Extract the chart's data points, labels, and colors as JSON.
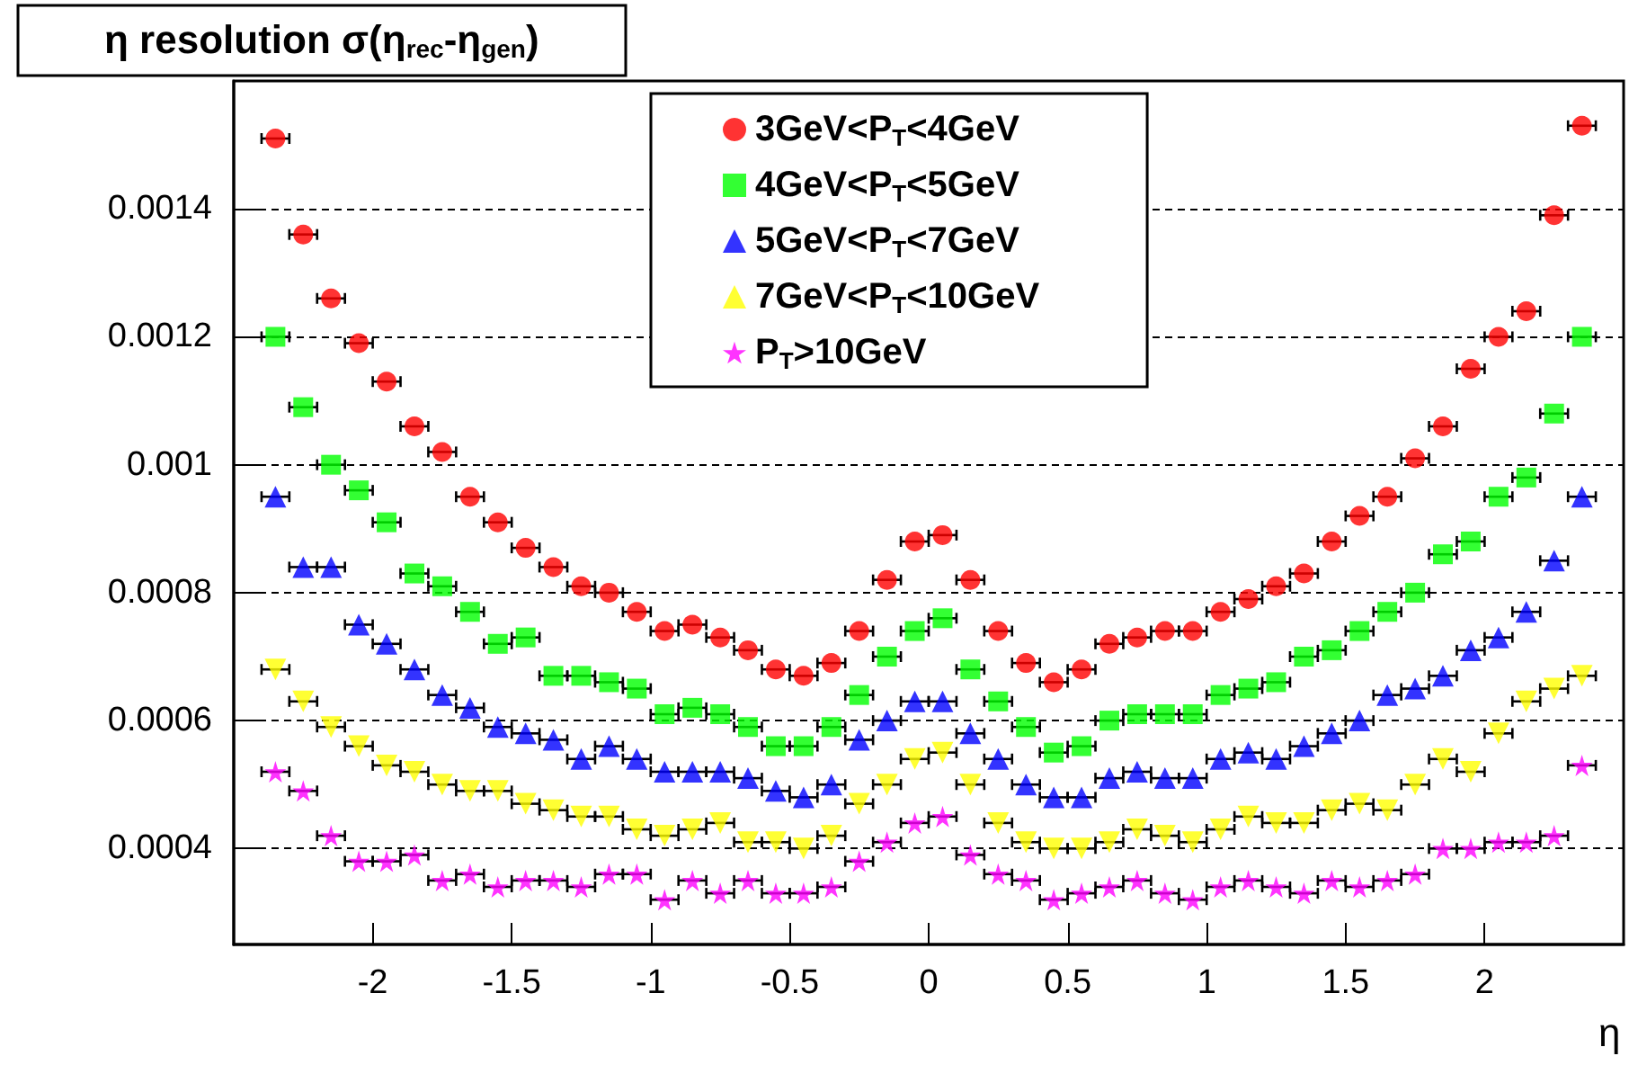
{
  "chart_data": {
    "type": "scatter",
    "title": "η resolution σ(η$_{rec}$-η$_{gen}$)",
    "xlabel": "η",
    "x": [
      -2.35,
      -2.25,
      -2.15,
      -2.05,
      -1.95,
      -1.85,
      -1.75,
      -1.65,
      -1.55,
      -1.45,
      -1.35,
      -1.25,
      -1.15,
      -1.05,
      -0.95,
      -0.85,
      -0.75,
      -0.65,
      -0.55,
      -0.45,
      -0.35,
      -0.25,
      -0.15,
      -0.05,
      0.05,
      0.15,
      0.25,
      0.35,
      0.45,
      0.55,
      0.65,
      0.75,
      0.85,
      0.95,
      1.05,
      1.15,
      1.25,
      1.35,
      1.45,
      1.55,
      1.65,
      1.75,
      1.85,
      1.95,
      2.05,
      2.15,
      2.25,
      2.35
    ],
    "xlim": [
      -2.5,
      2.5
    ],
    "xticks": [
      -2,
      -1.5,
      -1,
      -0.5,
      0,
      0.5,
      1,
      1.5,
      2
    ],
    "ylim": [
      0.00025,
      0.0016
    ],
    "yticks": [
      0.0004,
      0.0006,
      0.0008,
      0.001,
      0.0012,
      0.0014
    ],
    "grid": "y",
    "legend": "top",
    "series": [
      {
        "name": "3GeV<P$_{T}$<4GeV",
        "color": "#ff0000",
        "marker": "circle",
        "values": [
          0.00151,
          0.00136,
          0.00126,
          0.00119,
          0.00113,
          0.00106,
          0.00102,
          0.00095,
          0.00091,
          0.00087,
          0.00084,
          0.00081,
          0.0008,
          0.00077,
          0.00074,
          0.00075,
          0.00073,
          0.00071,
          0.00068,
          0.00067,
          0.00069,
          0.00074,
          0.00082,
          0.00088,
          0.00089,
          0.00082,
          0.00074,
          0.00069,
          0.00066,
          0.00068,
          0.00072,
          0.00073,
          0.00074,
          0.00074,
          0.00077,
          0.00079,
          0.00081,
          0.00083,
          0.00088,
          0.00092,
          0.00095,
          0.00101,
          0.00106,
          0.00115,
          0.0012,
          0.00124,
          0.00139,
          0.00153
        ],
        "xerrors": [
          0.05,
          0.05,
          0.05,
          0.05,
          0.05,
          0.05,
          0.05,
          0.05,
          0.05,
          0.05,
          0.05,
          0.05,
          0.05,
          0.05,
          0.05,
          0.05,
          0.05,
          0.05,
          0.05,
          0.05,
          0.05,
          0.05,
          0.05,
          0.05,
          0.05,
          0.05,
          0.05,
          0.05,
          0.05,
          0.05,
          0.05,
          0.05,
          0.05,
          0.05,
          0.05,
          0.05,
          0.05,
          0.05,
          0.05,
          0.05,
          0.05,
          0.05,
          0.05,
          0.05,
          0.05,
          0.05,
          0.05,
          0.05
        ]
      },
      {
        "name": "4GeV<P$_{T}$<5GeV",
        "color": "#00ff00",
        "marker": "square",
        "values": [
          0.0012,
          0.00109,
          0.001,
          0.00096,
          0.00091,
          0.00083,
          0.00081,
          0.00077,
          0.00072,
          0.00073,
          0.00067,
          0.00067,
          0.00066,
          0.00065,
          0.00061,
          0.00062,
          0.00061,
          0.00059,
          0.00056,
          0.00056,
          0.00059,
          0.00064,
          0.0007,
          0.00074,
          0.00076,
          0.00068,
          0.00063,
          0.00059,
          0.00055,
          0.00056,
          0.0006,
          0.00061,
          0.00061,
          0.00061,
          0.00064,
          0.00065,
          0.00066,
          0.0007,
          0.00071,
          0.00074,
          0.00077,
          0.0008,
          0.00086,
          0.00088,
          0.00095,
          0.00098,
          0.00108,
          0.0012
        ],
        "xerrors": [
          0.05,
          0.05,
          0.05,
          0.05,
          0.05,
          0.05,
          0.05,
          0.05,
          0.05,
          0.05,
          0.05,
          0.05,
          0.05,
          0.05,
          0.05,
          0.05,
          0.05,
          0.05,
          0.05,
          0.05,
          0.05,
          0.05,
          0.05,
          0.05,
          0.05,
          0.05,
          0.05,
          0.05,
          0.05,
          0.05,
          0.05,
          0.05,
          0.05,
          0.05,
          0.05,
          0.05,
          0.05,
          0.05,
          0.05,
          0.05,
          0.05,
          0.05,
          0.05,
          0.05,
          0.05,
          0.05,
          0.05,
          0.05
        ]
      },
      {
        "name": "5GeV<P$_{T}$<7GeV",
        "color": "#0000ff",
        "marker": "triangle",
        "values": [
          0.00095,
          0.00084,
          0.00084,
          0.00075,
          0.00072,
          0.00068,
          0.00064,
          0.00062,
          0.00059,
          0.00058,
          0.00057,
          0.00054,
          0.00056,
          0.00054,
          0.00052,
          0.00052,
          0.00052,
          0.00051,
          0.00049,
          0.00048,
          0.0005,
          0.00057,
          0.0006,
          0.00063,
          0.00063,
          0.00058,
          0.00054,
          0.0005,
          0.00048,
          0.00048,
          0.00051,
          0.00052,
          0.00051,
          0.00051,
          0.00054,
          0.00055,
          0.00054,
          0.00056,
          0.00058,
          0.0006,
          0.00064,
          0.00065,
          0.00067,
          0.00071,
          0.00073,
          0.00077,
          0.00085,
          0.00095
        ],
        "xerrors": [
          0.05,
          0.05,
          0.05,
          0.05,
          0.05,
          0.05,
          0.05,
          0.05,
          0.05,
          0.05,
          0.05,
          0.05,
          0.05,
          0.05,
          0.05,
          0.05,
          0.05,
          0.05,
          0.05,
          0.05,
          0.05,
          0.05,
          0.05,
          0.05,
          0.05,
          0.05,
          0.05,
          0.05,
          0.05,
          0.05,
          0.05,
          0.05,
          0.05,
          0.05,
          0.05,
          0.05,
          0.05,
          0.05,
          0.05,
          0.05,
          0.05,
          0.05,
          0.05,
          0.05,
          0.05,
          0.05,
          0.05,
          0.05
        ]
      },
      {
        "name": "7GeV<P$_{T}$<10GeV",
        "color": "#ffff00",
        "marker": "triangle-down",
        "values": [
          0.00068,
          0.00063,
          0.00059,
          0.00056,
          0.00053,
          0.00052,
          0.0005,
          0.00049,
          0.00049,
          0.00047,
          0.00046,
          0.00045,
          0.00045,
          0.00043,
          0.00042,
          0.00043,
          0.00044,
          0.00041,
          0.00041,
          0.0004,
          0.00042,
          0.00047,
          0.0005,
          0.00054,
          0.00055,
          0.0005,
          0.00044,
          0.00041,
          0.0004,
          0.0004,
          0.00041,
          0.00043,
          0.00042,
          0.00041,
          0.00043,
          0.00045,
          0.00044,
          0.00044,
          0.00046,
          0.00047,
          0.00046,
          0.0005,
          0.00054,
          0.00052,
          0.00058,
          0.00063,
          0.00065,
          0.00067
        ],
        "xerrors": [
          0.05,
          0.05,
          0.05,
          0.05,
          0.05,
          0.05,
          0.05,
          0.05,
          0.05,
          0.05,
          0.05,
          0.05,
          0.05,
          0.05,
          0.05,
          0.05,
          0.05,
          0.05,
          0.05,
          0.05,
          0.05,
          0.05,
          0.05,
          0.05,
          0.05,
          0.05,
          0.05,
          0.05,
          0.05,
          0.05,
          0.05,
          0.05,
          0.05,
          0.05,
          0.05,
          0.05,
          0.05,
          0.05,
          0.05,
          0.05,
          0.05,
          0.05,
          0.05,
          0.05,
          0.05,
          0.05,
          0.05,
          0.05
        ]
      },
      {
        "name": "P$_{T}$>10GeV",
        "color": "#ff00ff",
        "marker": "star",
        "values": [
          0.00052,
          0.00049,
          0.00042,
          0.00038,
          0.00038,
          0.00039,
          0.00035,
          0.00036,
          0.00034,
          0.00035,
          0.00035,
          0.00034,
          0.00036,
          0.00036,
          0.00032,
          0.00035,
          0.00033,
          0.00035,
          0.00033,
          0.00033,
          0.00034,
          0.00038,
          0.00041,
          0.00044,
          0.00045,
          0.00039,
          0.00036,
          0.00035,
          0.00032,
          0.00033,
          0.00034,
          0.00035,
          0.00033,
          0.00032,
          0.00034,
          0.00035,
          0.00034,
          0.00033,
          0.00035,
          0.00034,
          0.00035,
          0.00036,
          0.0004,
          0.0004,
          0.00041,
          0.00041,
          0.00042,
          0.00053
        ],
        "xerrors": [
          0.05,
          0.05,
          0.05,
          0.05,
          0.05,
          0.05,
          0.05,
          0.05,
          0.05,
          0.05,
          0.05,
          0.05,
          0.05,
          0.05,
          0.05,
          0.05,
          0.05,
          0.05,
          0.05,
          0.05,
          0.05,
          0.05,
          0.05,
          0.05,
          0.05,
          0.05,
          0.05,
          0.05,
          0.05,
          0.05,
          0.05,
          0.05,
          0.05,
          0.05,
          0.05,
          0.05,
          0.05,
          0.05,
          0.05,
          0.05,
          0.05,
          0.05,
          0.05,
          0.05,
          0.05,
          0.05,
          0.05,
          0.05
        ]
      }
    ]
  }
}
